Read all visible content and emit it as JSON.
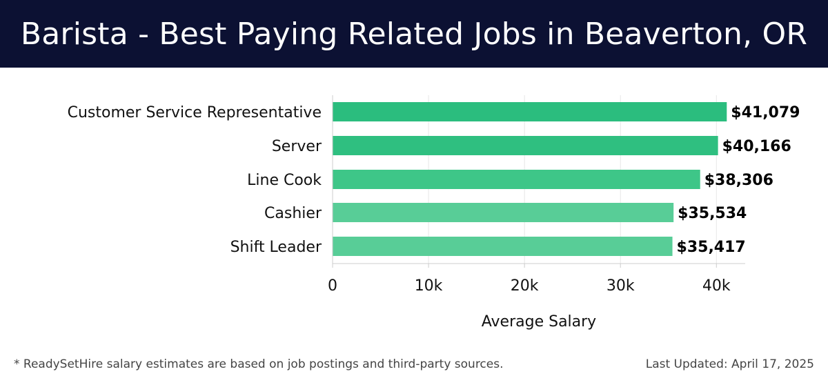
{
  "header": {
    "title": "Barista - Best Paying Related Jobs in Beaverton, OR"
  },
  "chart_data": {
    "type": "bar",
    "orientation": "horizontal",
    "categories": [
      "Customer Service Representative",
      "Server",
      "Line Cook",
      "Cashier",
      "Shift Leader"
    ],
    "values": [
      41079,
      40166,
      38306,
      35534,
      35417
    ],
    "value_labels": [
      "$41,079",
      "$40,166",
      "$38,306",
      "$35,534",
      "$35,417"
    ],
    "bar_colors": [
      "#2bbd7e",
      "#2fbf80",
      "#3ec688",
      "#58cd97",
      "#58cd97"
    ],
    "xlabel": "Average Salary",
    "ylabel": "",
    "xlim": [
      0,
      43000
    ],
    "xticks": [
      0,
      10000,
      20000,
      30000,
      40000
    ],
    "xtick_labels": [
      "0",
      "10k",
      "20k",
      "30k",
      "40k"
    ],
    "grid": true,
    "legend": "none"
  },
  "footer": {
    "note": "* ReadySetHire salary estimates are based on job postings and third-party sources.",
    "updated": "Last Updated: April 17, 2025"
  },
  "colors": {
    "header_bg": "#0c1133",
    "grid": "#e6e6e6",
    "axis": "#cccccc",
    "text": "#111111"
  }
}
